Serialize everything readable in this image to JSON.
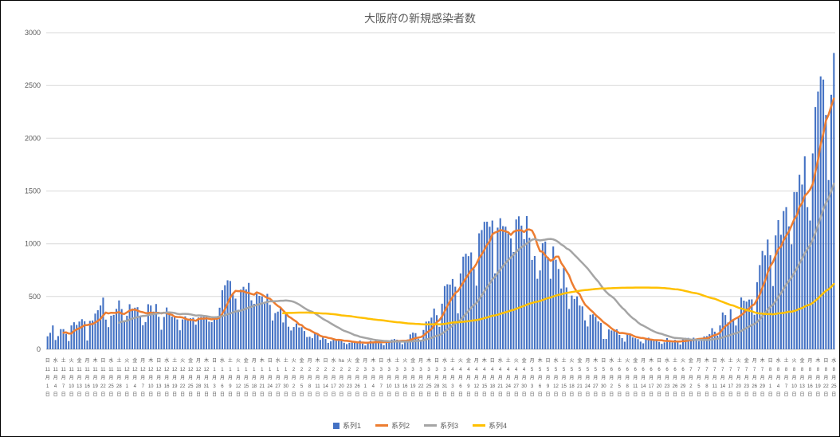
{
  "title": "大阪府の新規感染者数",
  "legend": [
    {
      "label": "系列1",
      "color": "#4472C4",
      "type": "bar"
    },
    {
      "label": "系列2",
      "color": "#ED7D31",
      "type": "line"
    },
    {
      "label": "系列3",
      "color": "#A5A5A5",
      "type": "line"
    },
    {
      "label": "系列4",
      "color": "#FFC000",
      "type": "line"
    }
  ],
  "colors": {
    "bar": "#4472C4",
    "line2": "#ED7D31",
    "line3": "#A5A5A5",
    "line4": "#FFC000",
    "gridline": "#D9D9D9",
    "axis_text": "#595959",
    "title_text": "#595959"
  },
  "annotations": [
    {
      "text": "ha",
      "day_index": 111
    }
  ],
  "chart_data": {
    "type": "bar",
    "title": "大阪府の新規感染者数",
    "xlabel": "",
    "ylabel": "",
    "ylim": [
      0,
      3000
    ],
    "y_tick_step": 500,
    "grid": true,
    "legend_position": "bottom",
    "x_start_date": "2020-11-01",
    "x_end_date": "2021-08-25",
    "x_tick_interval_days": 3,
    "weekday_names": [
      "日",
      "月",
      "火",
      "水",
      "木",
      "金",
      "土"
    ],
    "month_suffix": "月",
    "day_suffix": "日",
    "series": [
      {
        "name": "系列1",
        "type": "bar",
        "color": "#4472C4",
        "values": [
          123,
          156,
          226,
          88,
          125,
          191,
          191,
          146,
          78,
          226,
          256,
          231,
          263,
          285,
          266,
          83,
          269,
          273,
          338,
          370,
          415,
          490,
          281,
          210,
          318,
          326,
          383,
          463,
          381,
          262,
          318,
          427,
          386,
          394,
          399,
          310,
          228,
          258,
          427,
          415,
          357,
          429,
          308,
          185,
          306,
          396,
          351,
          309,
          311,
          283,
          180,
          283,
          312,
          289,
          294,
          299,
          233,
          302,
          307,
          307,
          313,
          262,
          258,
          286,
          286,
          394,
          560,
          607,
          654,
          647,
          532,
          480,
          374,
          566,
          592,
          568,
          629,
          464,
          431,
          525,
          506,
          501,
          450,
          525,
          421,
          273,
          343,
          357,
          397,
          254,
          338,
          214,
          178,
          211,
          244,
          207,
          209,
          173,
          116,
          119,
          105,
          152,
          141,
          89,
          112,
          97,
          61,
          76,
          100,
          91,
          91,
          90,
          62,
          49,
          62,
          64,
          67,
          69,
          83,
          54,
          36,
          65,
          81,
          68,
          90,
          74,
          56,
          38,
          84,
          84,
          92,
          98,
          91,
          65,
          48,
          84,
          93,
          141,
          158,
          153,
          100,
          79,
          183,
          262,
          266,
          300,
          386,
          323,
          213,
          432,
          599,
          616,
          613,
          666,
          593,
          341,
          719,
          878,
          905,
          883,
          918,
          760,
          603,
          1099,
          1130,
          1208,
          1209,
          1161,
          1220,
          719,
          1153,
          1242,
          1167,
          1162,
          1097,
          1050,
          922,
          1230,
          1260,
          1172,
          1043,
          1262,
          1057,
          847,
          884,
          668,
          747,
          1005,
          1021,
          875,
          668,
          974,
          849,
          761,
          576,
          772,
          586,
          382,
          509,
          477,
          501,
          415,
          406,
          274,
          216,
          327,
          331,
          308,
          264,
          250,
          98,
          98,
          188,
          178,
          189,
          189,
          136,
          106,
          72,
          153,
          148,
          112,
          105,
          96,
          73,
          57,
          108,
          110,
          91,
          79,
          90,
          70,
          52,
          66,
          106,
          74,
          65,
          89,
          69,
          45,
          98,
          108,
          108,
          88,
          110,
          98,
          78,
          108,
          122,
          125,
          143,
          200,
          167,
          129,
          226,
          349,
          324,
          254,
          380,
          287,
          225,
          313,
          491,
          461,
          452,
          471,
          473,
          327,
          636,
          798,
          932,
          890,
          1040,
          891,
          599,
          1079,
          1224,
          1085,
          1310,
          1347,
          1164,
          995,
          1490,
          1490,
          1654,
          1561,
          1828,
          1347,
          1220,
          1856,
          2296,
          2443,
          2586,
          2556,
          2221,
          1604,
          2412,
          2808
        ]
      },
      {
        "name": "系列2",
        "type": "line",
        "color": "#ED7D31",
        "derived": "moving_average",
        "window": 7
      },
      {
        "name": "系列3",
        "type": "line",
        "color": "#A5A5A5",
        "derived": "moving_average",
        "window": 28
      },
      {
        "name": "系列4",
        "type": "line",
        "color": "#FFC000",
        "derived": "moving_average",
        "window": 90
      }
    ]
  }
}
